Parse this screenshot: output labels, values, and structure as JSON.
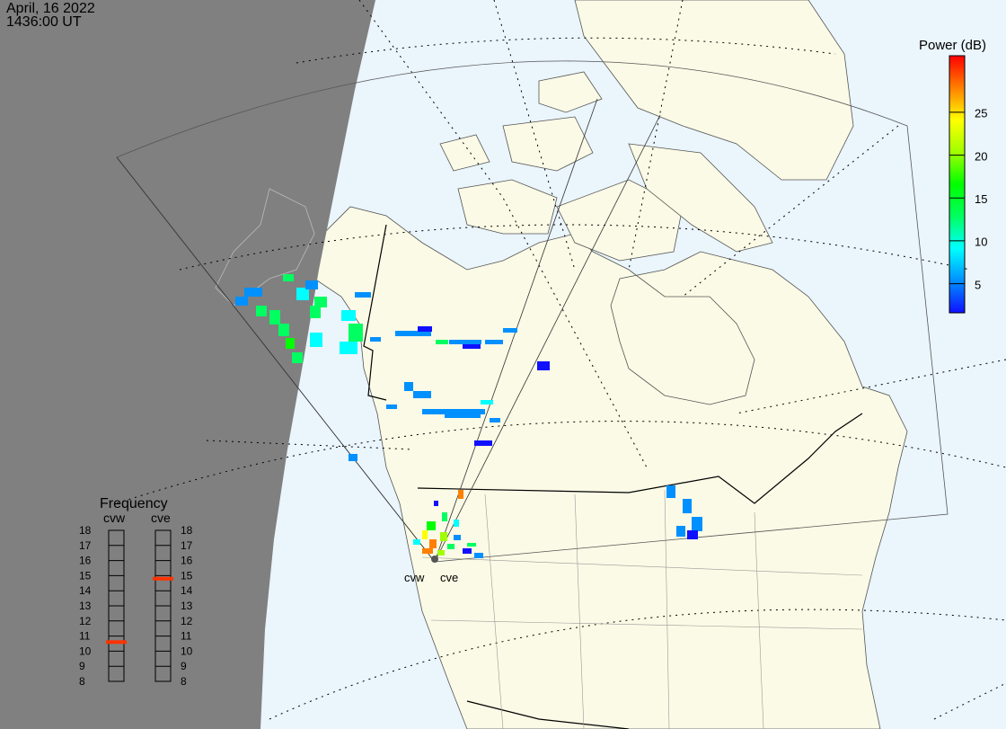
{
  "header": {
    "date": "April, 16 2022",
    "time": "1436:00 UT"
  },
  "colorbar": {
    "title": "Power (dB)",
    "ticks": [
      "5",
      "10",
      "15",
      "20",
      "25"
    ],
    "range": [
      0,
      30
    ],
    "colors": [
      "#1010ff",
      "#0090ff",
      "#00ffff",
      "#00ff60",
      "#00ff00",
      "#a0ff00",
      "#ffff00",
      "#ff8000",
      "#ff0000"
    ]
  },
  "frequency_panel": {
    "title": "Frequency",
    "radars": [
      {
        "name": "cvw",
        "frequency_mhz": 10.6
      },
      {
        "name": "cve",
        "frequency_mhz": 14.8
      }
    ],
    "scale": [
      "18",
      "17",
      "16",
      "15",
      "14",
      "13",
      "12",
      "11",
      "10",
      "9",
      "8"
    ],
    "marker_color": "#ff3300"
  },
  "radar_labels": [
    "cvw",
    "cve"
  ],
  "colors": {
    "night": "#808080",
    "ocean": "#eaf5fc",
    "land": "#fafae6"
  }
}
